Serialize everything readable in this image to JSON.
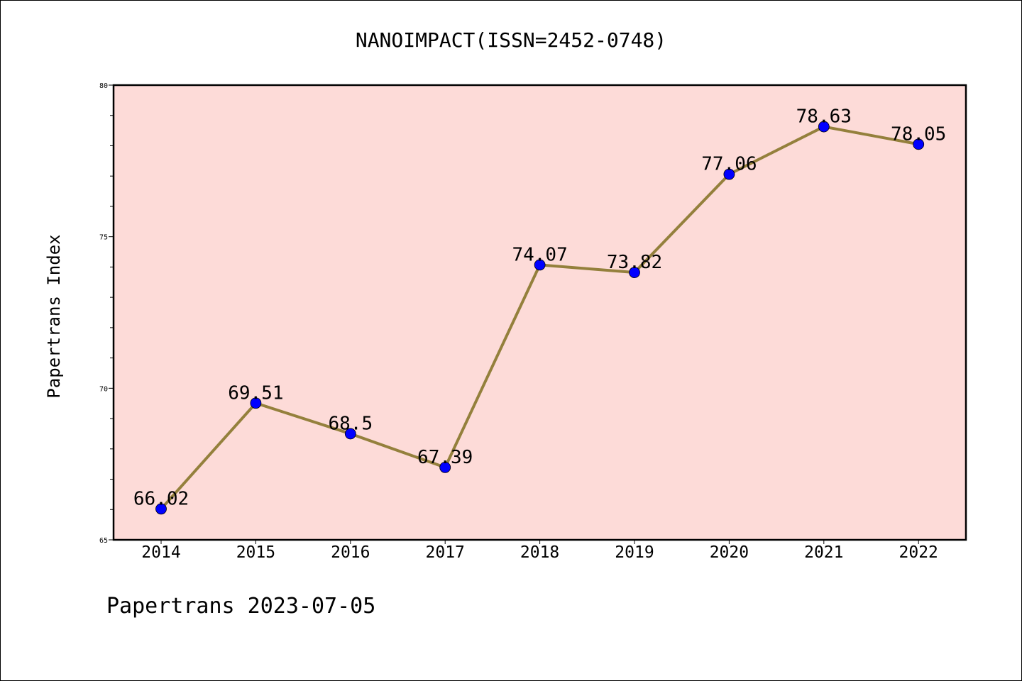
{
  "chart_data": {
    "type": "line",
    "title": "NANOIMPACT(ISSN=2452-0748)",
    "xlabel": "",
    "ylabel": "Papertrans Index",
    "categories": [
      "2014",
      "2015",
      "2016",
      "2017",
      "2018",
      "2019",
      "2020",
      "2021",
      "2022"
    ],
    "series": [
      {
        "values": [
          66.02,
          69.51,
          68.5,
          67.39,
          74.07,
          73.82,
          77.06,
          78.63,
          78.05
        ],
        "labels": [
          "66.02",
          "69.51",
          "68.5",
          "67.39",
          "74.07",
          "73.82",
          "77.06",
          "78.63",
          "78.05"
        ]
      }
    ],
    "ylim": [
      65,
      80
    ],
    "yticks": [
      "65",
      "70",
      "75",
      "80"
    ],
    "grid": false,
    "legend": "none",
    "colors": {
      "plot_background": "#fddbd8",
      "line": "#94803c",
      "marker": "#0000ff"
    }
  },
  "footer": "Papertrans 2023-07-05"
}
